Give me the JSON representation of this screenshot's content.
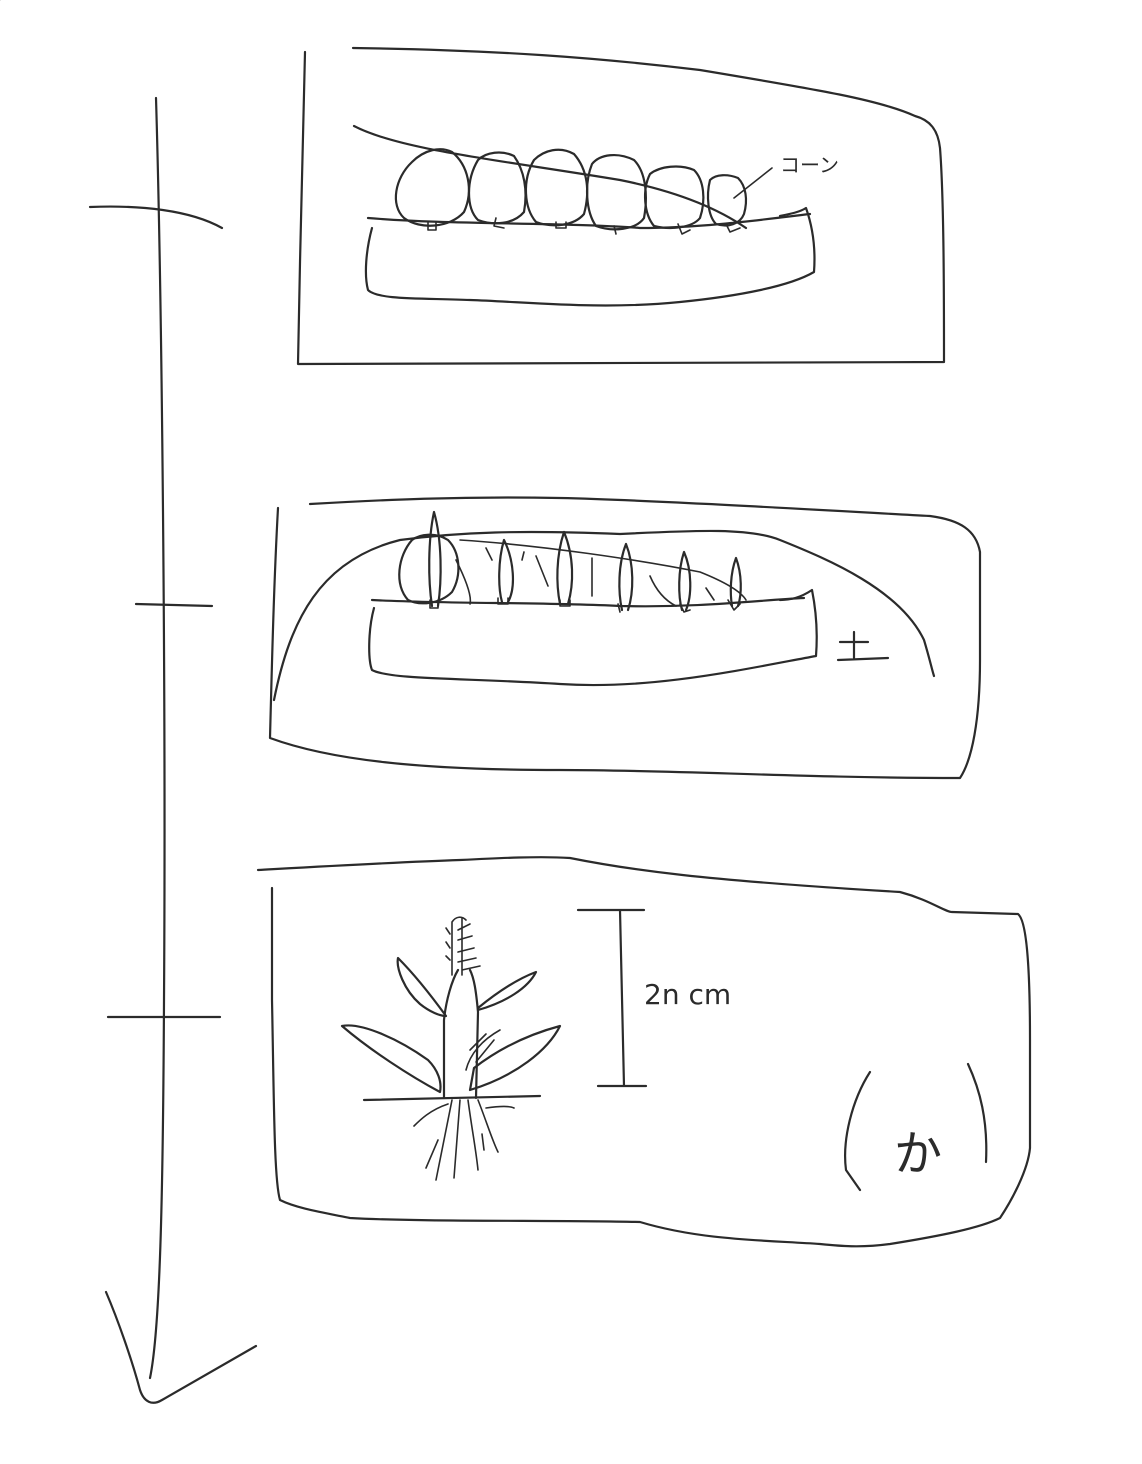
{
  "labels": {
    "seeds": "コーン",
    "soil": "土",
    "height": "2n cm",
    "bottom_right": "か"
  },
  "icons": [
    "timeline-arrow",
    "seeds-in-soil",
    "sprouts-in-soil",
    "grown-plant"
  ]
}
